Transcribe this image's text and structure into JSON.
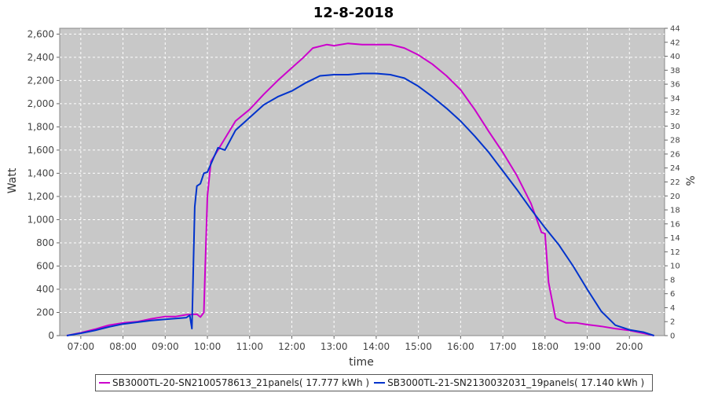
{
  "chart_data": {
    "type": "line",
    "title": "12-8-2018",
    "xlabel": "time",
    "ylabel": "Watt",
    "y2label": "%",
    "ylim": [
      0,
      2650
    ],
    "y2lim": [
      0,
      44
    ],
    "xlim": [
      "06:30",
      "20:50"
    ],
    "x_ticks": [
      "07:00",
      "08:00",
      "09:00",
      "10:00",
      "11:00",
      "12:00",
      "13:00",
      "14:00",
      "15:00",
      "16:00",
      "17:00",
      "18:00",
      "19:00",
      "20:00"
    ],
    "y_ticks": [
      "0",
      "200",
      "400",
      "600",
      "800",
      "1,000",
      "1,200",
      "1,400",
      "1,600",
      "1,800",
      "2,000",
      "2,200",
      "2,400",
      "2,600"
    ],
    "y2_ticks": [
      "0",
      "2",
      "4",
      "6",
      "8",
      "10",
      "12",
      "14",
      "16",
      "18",
      "20",
      "22",
      "24",
      "26",
      "28",
      "30",
      "32",
      "34",
      "36",
      "38",
      "40",
      "42",
      "44"
    ],
    "grid": true,
    "legend_position": "bottom",
    "series": [
      {
        "name": "SB3000TL-20-SN2100578613_21panels( 17.777 kWh )",
        "color": "#cc00cc",
        "points": [
          [
            "06:40",
            0
          ],
          [
            "07:00",
            25
          ],
          [
            "07:20",
            55
          ],
          [
            "07:40",
            90
          ],
          [
            "08:00",
            110
          ],
          [
            "08:20",
            120
          ],
          [
            "08:40",
            145
          ],
          [
            "09:00",
            165
          ],
          [
            "09:15",
            165
          ],
          [
            "09:30",
            180
          ],
          [
            "09:45",
            185
          ],
          [
            "09:50",
            160
          ],
          [
            "09:55",
            200
          ],
          [
            "10:00",
            1200
          ],
          [
            "10:05",
            1500
          ],
          [
            "10:20",
            1650
          ],
          [
            "10:40",
            1850
          ],
          [
            "11:00",
            1950
          ],
          [
            "11:20",
            2080
          ],
          [
            "11:40",
            2200
          ],
          [
            "12:00",
            2310
          ],
          [
            "12:15",
            2390
          ],
          [
            "12:30",
            2480
          ],
          [
            "12:50",
            2510
          ],
          [
            "13:00",
            2500
          ],
          [
            "13:20",
            2520
          ],
          [
            "13:40",
            2510
          ],
          [
            "14:00",
            2510
          ],
          [
            "14:20",
            2510
          ],
          [
            "14:40",
            2480
          ],
          [
            "15:00",
            2420
          ],
          [
            "15:20",
            2340
          ],
          [
            "15:40",
            2240
          ],
          [
            "16:00",
            2120
          ],
          [
            "16:20",
            1950
          ],
          [
            "16:40",
            1760
          ],
          [
            "17:00",
            1580
          ],
          [
            "17:20",
            1380
          ],
          [
            "17:40",
            1140
          ],
          [
            "17:55",
            890
          ],
          [
            "18:00",
            880
          ],
          [
            "18:05",
            460
          ],
          [
            "18:15",
            150
          ],
          [
            "18:30",
            110
          ],
          [
            "18:45",
            110
          ],
          [
            "19:00",
            95
          ],
          [
            "19:20",
            80
          ],
          [
            "19:40",
            60
          ],
          [
            "20:00",
            45
          ],
          [
            "20:20",
            20
          ],
          [
            "20:35",
            0
          ]
        ]
      },
      {
        "name": "SB3000TL-21-SN2130032031_19panels( 17.140 kWh )",
        "color": "#0033cc",
        "points": [
          [
            "06:40",
            0
          ],
          [
            "07:00",
            20
          ],
          [
            "07:20",
            45
          ],
          [
            "07:40",
            75
          ],
          [
            "08:00",
            100
          ],
          [
            "08:20",
            115
          ],
          [
            "08:40",
            130
          ],
          [
            "09:00",
            140
          ],
          [
            "09:20",
            150
          ],
          [
            "09:30",
            155
          ],
          [
            "09:35",
            175
          ],
          [
            "09:38",
            60
          ],
          [
            "09:42",
            1110
          ],
          [
            "09:45",
            1290
          ],
          [
            "09:50",
            1310
          ],
          [
            "09:55",
            1400
          ],
          [
            "10:00",
            1410
          ],
          [
            "10:15",
            1620
          ],
          [
            "10:25",
            1600
          ],
          [
            "10:40",
            1770
          ],
          [
            "11:00",
            1880
          ],
          [
            "11:20",
            1990
          ],
          [
            "11:40",
            2060
          ],
          [
            "12:00",
            2110
          ],
          [
            "12:20",
            2180
          ],
          [
            "12:40",
            2240
          ],
          [
            "13:00",
            2250
          ],
          [
            "13:20",
            2250
          ],
          [
            "13:40",
            2260
          ],
          [
            "14:00",
            2260
          ],
          [
            "14:20",
            2250
          ],
          [
            "14:40",
            2220
          ],
          [
            "15:00",
            2150
          ],
          [
            "15:20",
            2060
          ],
          [
            "15:40",
            1960
          ],
          [
            "16:00",
            1850
          ],
          [
            "16:20",
            1720
          ],
          [
            "16:40",
            1580
          ],
          [
            "17:00",
            1420
          ],
          [
            "17:20",
            1260
          ],
          [
            "17:40",
            1090
          ],
          [
            "18:00",
            930
          ],
          [
            "18:20",
            780
          ],
          [
            "18:40",
            600
          ],
          [
            "19:00",
            400
          ],
          [
            "19:20",
            210
          ],
          [
            "19:40",
            90
          ],
          [
            "20:00",
            50
          ],
          [
            "20:20",
            30
          ],
          [
            "20:35",
            0
          ]
        ]
      }
    ]
  }
}
